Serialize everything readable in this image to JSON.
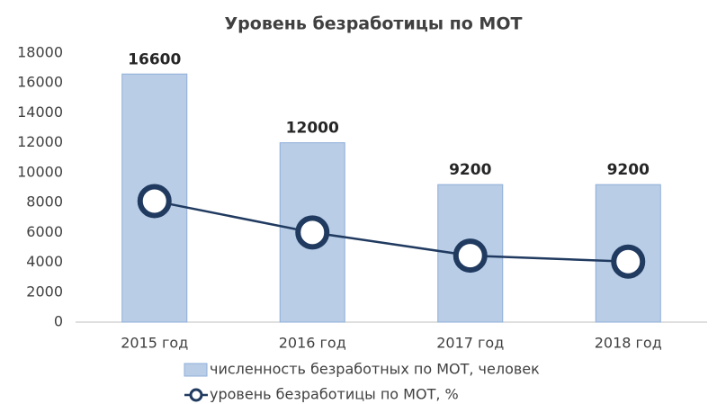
{
  "chart_data": {
    "type": "bar_line",
    "title": "Уровень безработицы по МОТ",
    "categories": [
      "2015 год",
      "2016 год",
      "2017 год",
      "2018 год"
    ],
    "series": [
      {
        "name": "численность безработных по МОТ, человек",
        "type": "bar",
        "color": "#b9cde6",
        "values": [
          16600,
          12000,
          9200,
          9200
        ]
      },
      {
        "name": "уровень безработицы по МОТ, %",
        "type": "line",
        "color": "#203a60",
        "values": [
          8100,
          6000,
          4450,
          4050
        ]
      }
    ],
    "ylim": [
      0,
      18000
    ],
    "yticks": [
      0,
      2000,
      4000,
      6000,
      8000,
      10000,
      12000,
      14000,
      16000,
      18000
    ],
    "grid": false,
    "legend": "bottom"
  }
}
